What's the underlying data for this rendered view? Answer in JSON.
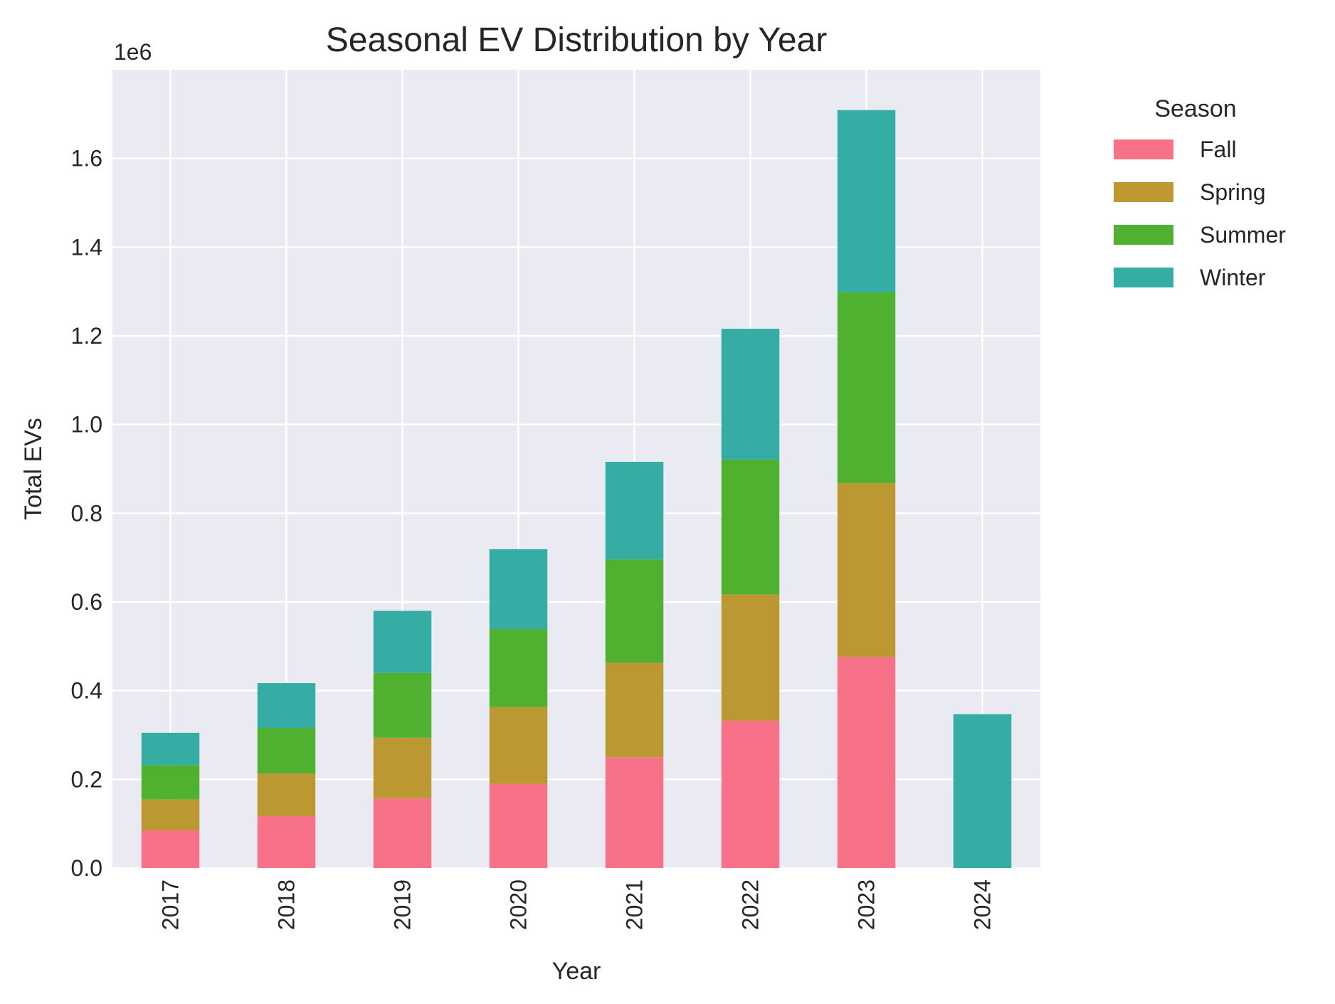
{
  "chart_data": {
    "type": "bar",
    "stacked": true,
    "title": "Seasonal EV Distribution by Year",
    "xlabel": "Year",
    "ylabel": "Total EVs",
    "y_offset_label": "1e6",
    "ylim": [
      0,
      1.8
    ],
    "yticks": [
      0.0,
      0.2,
      0.4,
      0.6,
      0.8,
      1.0,
      1.2,
      1.4,
      1.6
    ],
    "ytick_labels": [
      "0.0",
      "0.2",
      "0.4",
      "0.6",
      "0.8",
      "1.0",
      "1.2",
      "1.4",
      "1.6"
    ],
    "categories": [
      "2017",
      "2018",
      "2019",
      "2020",
      "2021",
      "2022",
      "2023",
      "2024"
    ],
    "grid": true,
    "legend": {
      "title": "Season",
      "placement": "outside-right-top"
    },
    "series": [
      {
        "name": "Fall",
        "color": "#f77189",
        "values": [
          0.085,
          0.117,
          0.157,
          0.19,
          0.25,
          0.332,
          0.476,
          0
        ]
      },
      {
        "name": "Spring",
        "color": "#bb9832",
        "values": [
          0.07,
          0.096,
          0.137,
          0.173,
          0.213,
          0.285,
          0.392,
          0
        ]
      },
      {
        "name": "Summer",
        "color": "#50b131",
        "values": [
          0.077,
          0.103,
          0.146,
          0.176,
          0.233,
          0.304,
          0.43,
          0
        ]
      },
      {
        "name": "Winter",
        "color": "#36ada4",
        "values": [
          0.073,
          0.101,
          0.14,
          0.18,
          0.22,
          0.295,
          0.411,
          0.347
        ]
      }
    ]
  }
}
